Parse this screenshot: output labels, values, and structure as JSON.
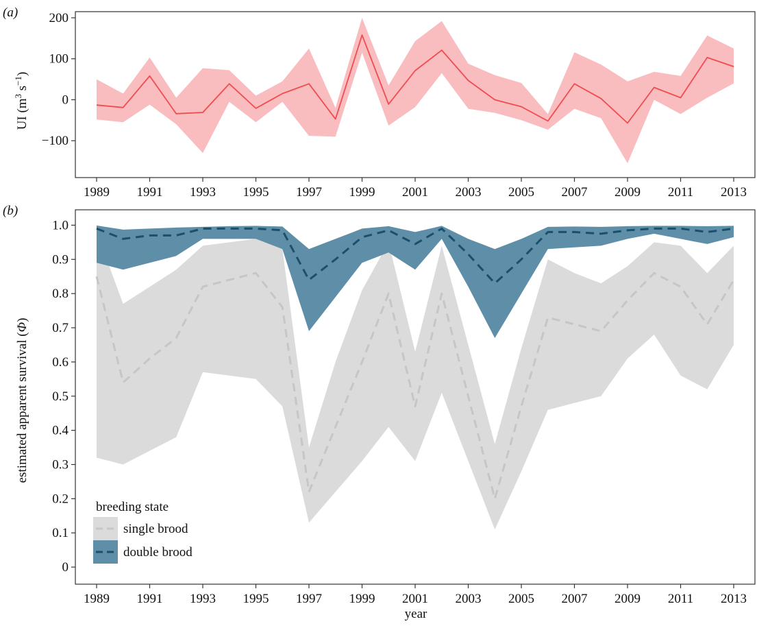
{
  "chart_data": [
    {
      "panel_label": "(a)",
      "type": "line",
      "xlabel": "",
      "ylabel": "UI (m³ s⁻¹)",
      "ylabel_parts": {
        "main": "UI (m",
        "sup1": "3",
        "mid": " s",
        "sup2": "−1",
        "end": ")"
      },
      "xlim": [
        1988.2,
        2013.8
      ],
      "ylim": [
        -190,
        215
      ],
      "yticks": [
        -100,
        0,
        100,
        200
      ],
      "ytick_labels": [
        "−100",
        "0",
        "100",
        "200"
      ],
      "xticks": [
        1989,
        1991,
        1993,
        1995,
        1997,
        1999,
        2001,
        2003,
        2005,
        2007,
        2009,
        2011,
        2013
      ],
      "xtick_labels": [
        "1989",
        "1991",
        "1993",
        "1995",
        "1997",
        "1999",
        "2001",
        "2003",
        "2005",
        "2007",
        "2009",
        "2011",
        "2013"
      ],
      "grid": false,
      "colors": {
        "line": "#f04c50",
        "band": "#f9bcbf"
      },
      "x": [
        1989,
        1990,
        1991,
        1992,
        1993,
        1994,
        1995,
        1996,
        1997,
        1998,
        1999,
        2000,
        2001,
        2002,
        2003,
        2004,
        2005,
        2006,
        2007,
        2008,
        2009,
        2010,
        2011,
        2012,
        2013
      ],
      "series": [
        {
          "values": [
            -13,
            -19,
            58,
            -34,
            -31,
            39,
            -21,
            15,
            39,
            -47,
            158,
            -11,
            71,
            121,
            47,
            0,
            -17,
            -52,
            39,
            3,
            -57,
            30,
            5,
            103,
            81
          ],
          "lower": [
            -48,
            -55,
            -12,
            -60,
            -130,
            -5,
            -55,
            -5,
            -88,
            -90,
            115,
            -63,
            -18,
            65,
            -22,
            -32,
            -50,
            -73,
            -22,
            -45,
            -155,
            0,
            -35,
            5,
            40
          ],
          "upper": [
            50,
            15,
            103,
            5,
            77,
            72,
            10,
            45,
            125,
            -20,
            200,
            35,
            143,
            192,
            88,
            60,
            41,
            -35,
            116,
            86,
            45,
            68,
            58,
            157,
            125
          ]
        }
      ]
    },
    {
      "panel_label": "(b)",
      "type": "line",
      "xlabel": "year",
      "ylabel": "estimated apparent survival (Φ)",
      "ylabel_parts": {
        "main": "estimated apparent survival (",
        "phi": "Φ",
        "end": ")"
      },
      "xlim": [
        1988.2,
        2013.8
      ],
      "ylim": [
        -0.05,
        1.045
      ],
      "yticks": [
        0,
        0.1,
        0.2,
        0.3,
        0.4,
        0.5,
        0.6,
        0.7,
        0.8,
        0.9,
        1.0
      ],
      "ytick_labels": [
        "0",
        "0.1",
        "0.2",
        "0.3",
        "0.4",
        "0.5",
        "0.6",
        "0.7",
        "0.8",
        "0.9",
        "1.0"
      ],
      "xticks": [
        1989,
        1991,
        1993,
        1995,
        1997,
        1999,
        2001,
        2003,
        2005,
        2007,
        2009,
        2011,
        2013
      ],
      "xtick_labels": [
        "1989",
        "1991",
        "1993",
        "1995",
        "1997",
        "1999",
        "2001",
        "2003",
        "2005",
        "2007",
        "2009",
        "2011",
        "2013"
      ],
      "grid": false,
      "legend": {
        "title": "breeding state",
        "position": "bottom-left"
      },
      "x": [
        1989,
        1990,
        1991,
        1992,
        1993,
        1994,
        1995,
        1996,
        1997,
        1998,
        1999,
        2000,
        2001,
        2002,
        2003,
        2004,
        2005,
        2006,
        2007,
        2008,
        2009,
        2010,
        2011,
        2012,
        2013
      ],
      "series": [
        {
          "name": "single brood",
          "line_color": "#c6c6c6",
          "band_color": "#dbdbdb",
          "values": [
            0.85,
            0.54,
            0.61,
            0.67,
            0.82,
            0.84,
            0.86,
            0.76,
            0.22,
            0.41,
            0.6,
            0.8,
            0.47,
            0.8,
            0.5,
            0.2,
            0.47,
            0.73,
            0.71,
            0.69,
            0.78,
            0.86,
            0.82,
            0.71,
            0.84
          ],
          "lower": [
            0.32,
            0.3,
            0.34,
            0.38,
            0.57,
            0.56,
            0.55,
            0.47,
            0.13,
            0.22,
            0.31,
            0.41,
            0.31,
            0.51,
            0.31,
            0.11,
            0.28,
            0.46,
            0.48,
            0.5,
            0.61,
            0.68,
            0.56,
            0.52,
            0.65
          ],
          "upper": [
            0.98,
            0.77,
            0.82,
            0.87,
            0.94,
            0.95,
            0.96,
            0.93,
            0.35,
            0.6,
            0.81,
            0.95,
            0.63,
            0.94,
            0.65,
            0.36,
            0.64,
            0.9,
            0.86,
            0.83,
            0.88,
            0.95,
            0.94,
            0.86,
            0.94
          ]
        },
        {
          "name": "double brood",
          "line_color": "#1b4f6b",
          "band_color": "#5e8ea8",
          "values": [
            0.99,
            0.96,
            0.97,
            0.97,
            0.99,
            0.99,
            0.99,
            0.985,
            0.84,
            0.9,
            0.965,
            0.985,
            0.945,
            0.99,
            0.915,
            0.83,
            0.9,
            0.98,
            0.98,
            0.975,
            0.985,
            0.99,
            0.99,
            0.98,
            0.99
          ],
          "lower": [
            0.89,
            0.87,
            0.89,
            0.91,
            0.96,
            0.96,
            0.96,
            0.93,
            0.69,
            0.79,
            0.89,
            0.92,
            0.87,
            0.96,
            0.82,
            0.67,
            0.8,
            0.93,
            0.935,
            0.94,
            0.96,
            0.975,
            0.96,
            0.945,
            0.965
          ],
          "upper": [
            0.999,
            0.987,
            0.99,
            0.993,
            0.995,
            0.997,
            0.998,
            0.996,
            0.93,
            0.96,
            0.99,
            0.997,
            0.98,
            0.998,
            0.96,
            0.93,
            0.96,
            0.995,
            0.996,
            0.995,
            0.997,
            0.998,
            0.998,
            0.997,
            0.998
          ]
        }
      ]
    }
  ]
}
